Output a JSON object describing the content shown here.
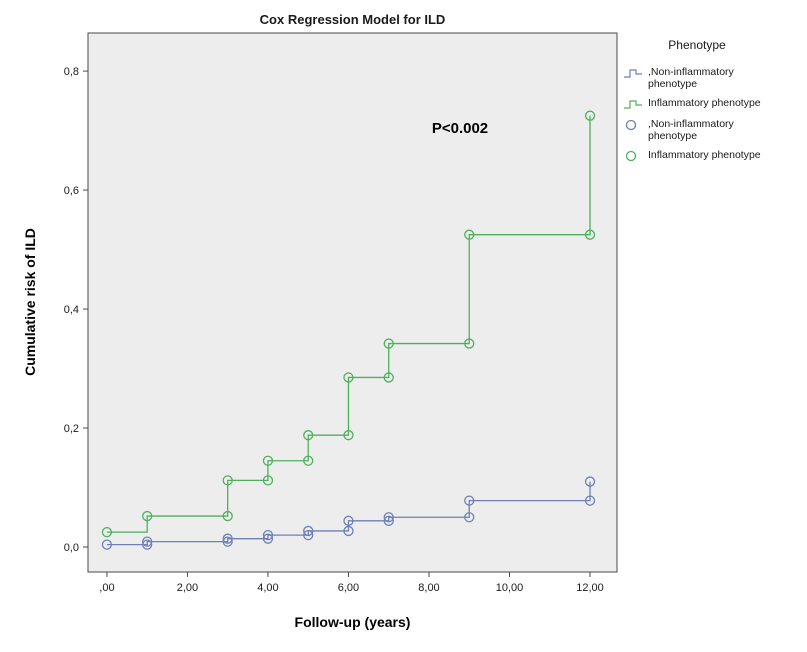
{
  "figure": {
    "title": "Cox Regression Model for ILD",
    "xlabel": "Follow-up (years)",
    "ylabel": "Cumulative risk of ILD",
    "annotation": "P<0.002"
  },
  "legend": {
    "title": "Phenotype",
    "items": [
      {
        "symbol": "step-line",
        "color": "#6e7fb9",
        "label": ",Non-inflammatory phenotype"
      },
      {
        "symbol": "step-line",
        "color": "#4fb05c",
        "label": "Inflammatory phenotype"
      },
      {
        "symbol": "circle",
        "color": "#6e7fb9",
        "label": ",Non-inflammatory phenotype"
      },
      {
        "symbol": "circle",
        "color": "#4fb05c",
        "label": "Inflammatory phenotype"
      }
    ]
  },
  "chart_data": {
    "type": "line",
    "subtype": "step",
    "title": "Cox Regression Model for ILD",
    "xlabel": "Follow-up (years)",
    "ylabel": "Cumulative risk of ILD",
    "grid": false,
    "plot_bg": "#ededed",
    "frame_color": "#4a4a4a",
    "x_range": [
      -0.47,
      12.67
    ],
    "y_range": [
      -0.042,
      0.864
    ],
    "x_ticks": [
      0,
      2,
      4,
      6,
      8,
      10,
      12
    ],
    "x_tick_labels": [
      ",00",
      "2,00",
      "4,00",
      "6,00",
      "8,00",
      "10,00",
      "12,00"
    ],
    "y_ticks": [
      0.0,
      0.2,
      0.4,
      0.6,
      0.8
    ],
    "y_tick_labels": [
      "0,0",
      "0,2",
      "0,4",
      "0,6",
      "0,8"
    ],
    "annotation": {
      "text": "P<0.002",
      "x": 8.65,
      "y": 0.7
    },
    "series": [
      {
        "name": "Non-inflammatory phenotype",
        "color": "#6e7fb9",
        "steps": [
          [
            0,
            0.004
          ],
          [
            1,
            0.009
          ],
          [
            3,
            0.014
          ],
          [
            4,
            0.02
          ],
          [
            5,
            0.027
          ],
          [
            6,
            0.044
          ],
          [
            7,
            0.05
          ],
          [
            9,
            0.078
          ],
          [
            12,
            0.11
          ]
        ],
        "markers": [
          [
            0,
            0.004
          ],
          [
            1,
            0.004
          ],
          [
            1,
            0.009
          ],
          [
            3,
            0.009
          ],
          [
            3,
            0.014
          ],
          [
            4,
            0.014
          ],
          [
            4,
            0.02
          ],
          [
            5,
            0.02
          ],
          [
            5,
            0.027
          ],
          [
            6,
            0.027
          ],
          [
            6,
            0.044
          ],
          [
            7,
            0.044
          ],
          [
            7,
            0.05
          ],
          [
            9,
            0.05
          ],
          [
            9,
            0.078
          ],
          [
            12,
            0.078
          ],
          [
            12,
            0.11
          ]
        ]
      },
      {
        "name": "Inflammatory phenotype",
        "color": "#4fb05c",
        "steps": [
          [
            0,
            0.025
          ],
          [
            1,
            0.052
          ],
          [
            3,
            0.112
          ],
          [
            4,
            0.145
          ],
          [
            5,
            0.188
          ],
          [
            6,
            0.285
          ],
          [
            7,
            0.342
          ],
          [
            9,
            0.525
          ],
          [
            12,
            0.725
          ]
        ],
        "markers": [
          [
            0,
            0.025
          ],
          [
            1,
            0.052
          ],
          [
            3,
            0.052
          ],
          [
            3,
            0.112
          ],
          [
            4,
            0.112
          ],
          [
            4,
            0.145
          ],
          [
            5,
            0.145
          ],
          [
            5,
            0.188
          ],
          [
            6,
            0.188
          ],
          [
            6,
            0.285
          ],
          [
            7,
            0.285
          ],
          [
            7,
            0.342
          ],
          [
            9,
            0.342
          ],
          [
            9,
            0.525
          ],
          [
            12,
            0.525
          ],
          [
            12,
            0.725
          ]
        ]
      }
    ]
  }
}
